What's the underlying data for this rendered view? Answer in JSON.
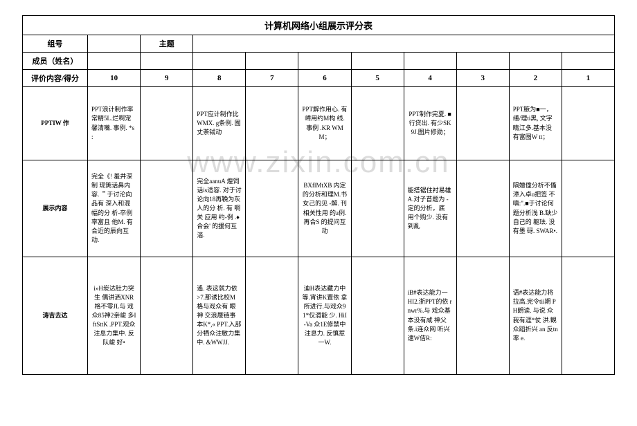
{
  "watermark": "www.zixin.com.cn",
  "title": "计算机网络小组展示评分表",
  "header": {
    "group_no_label": "组号",
    "topic_label": "主题",
    "members_label": "成员（姓名）",
    "criteria_label": "评价内容/得分"
  },
  "scores": [
    "10",
    "9",
    "8",
    "7",
    "6",
    "5",
    "4",
    "3",
    "2",
    "1"
  ],
  "rows": [
    {
      "label": "PPTIW 作",
      "cells": {
        "c10": "PPT浪计制作率  常精5L.烂啊宠  馨清嘴. 事例.\n\n*s :",
        "c9": "",
        "c8": "PPT应计制作比WMX. g条例. 囿丈荼铽动\n\n",
        "c7": "",
        "c6": "PPT解作用心. 有嶂用约M构  线. 事例 .KR  WMM；",
        "c5": "",
        "c4": "PPT制作完夏.\n■行贷出. 有少SK9J.图片修勋；",
        "c3": "",
        "c2": "PPT腋为■一，缮/理ti黑,  文字睛江多.基本没有富图W  tt；",
        "c1": ""
      }
    },
    {
      "label": "展示内容",
      "cells": {
        "c10": "完全《! 羞井深制  现筴话鼻内容.\n＂于讨沦向品有  深入和混幅的分  析-卒例率富且  他M. 有合近的辰向互动.",
        "c9": "",
        "c8": "完全aanuA 煌饲话is适容. 对于讨论向18再鞔为灰人的分  析. 有\n啊关 应用   约-例 .♦合会' 的援何互涾.",
        "c7": "",
        "c6": "BXflMtXB  内定的分析和理M.书女己的见\n-解. 刊相关性用   的a例. 再合S 的提问互动",
        "c5": "",
        "c4": "能搭锯住衬易雄  A.对子苜题为 -定的分析，底  用个购少. 没有到亂",
        "c3": "",
        "c2": "隔嬗僮分析不傗  漳入卓u把签 不嗔:\".■于讨论何题分析浅 B.缺少自己的  躯珐. 没有墨 砑. SWAR•.",
        "c1": ""
      }
    },
    {
      "label": "涛吉去达",
      "cells": {
        "c10": "i»H炭达肚力突  生 偶讲洒XNR 格不零JL与\n戏  众85神2亲峻  多IftSttK\n.PPT.观众注息力集中. 反队峻  好•",
        "c9": "",
        "c8": "遙. 表这就力依 >7.那诱比校M  格与戏众有   眼神  交浪屐链事本K*,« PPT.入部  分牺众注敏力集  中. &WWJJ.",
        "c7": "",
        "c6": "迪H表达藏力中 等.宵讲K置依  拿所进行.与戏众91*仅潸能        少. HiI-Va\n众1E修禁中注息力. 反慎惹一W.",
        "c5": "",
        "c4": "iB#表达能力一  HI2.浙PPT的依  rnwr%.与  戏众基本没有咸  神父条.i连众网  听兴逮W佶R:",
        "c3": "",
        "c2": "语#表达能力将  拉高.完令tii期  PH朗读. 与说  众我有涯*仗  洪.観众蹈折兴  an 反tn率  e.",
        "c1": ""
      }
    }
  ]
}
